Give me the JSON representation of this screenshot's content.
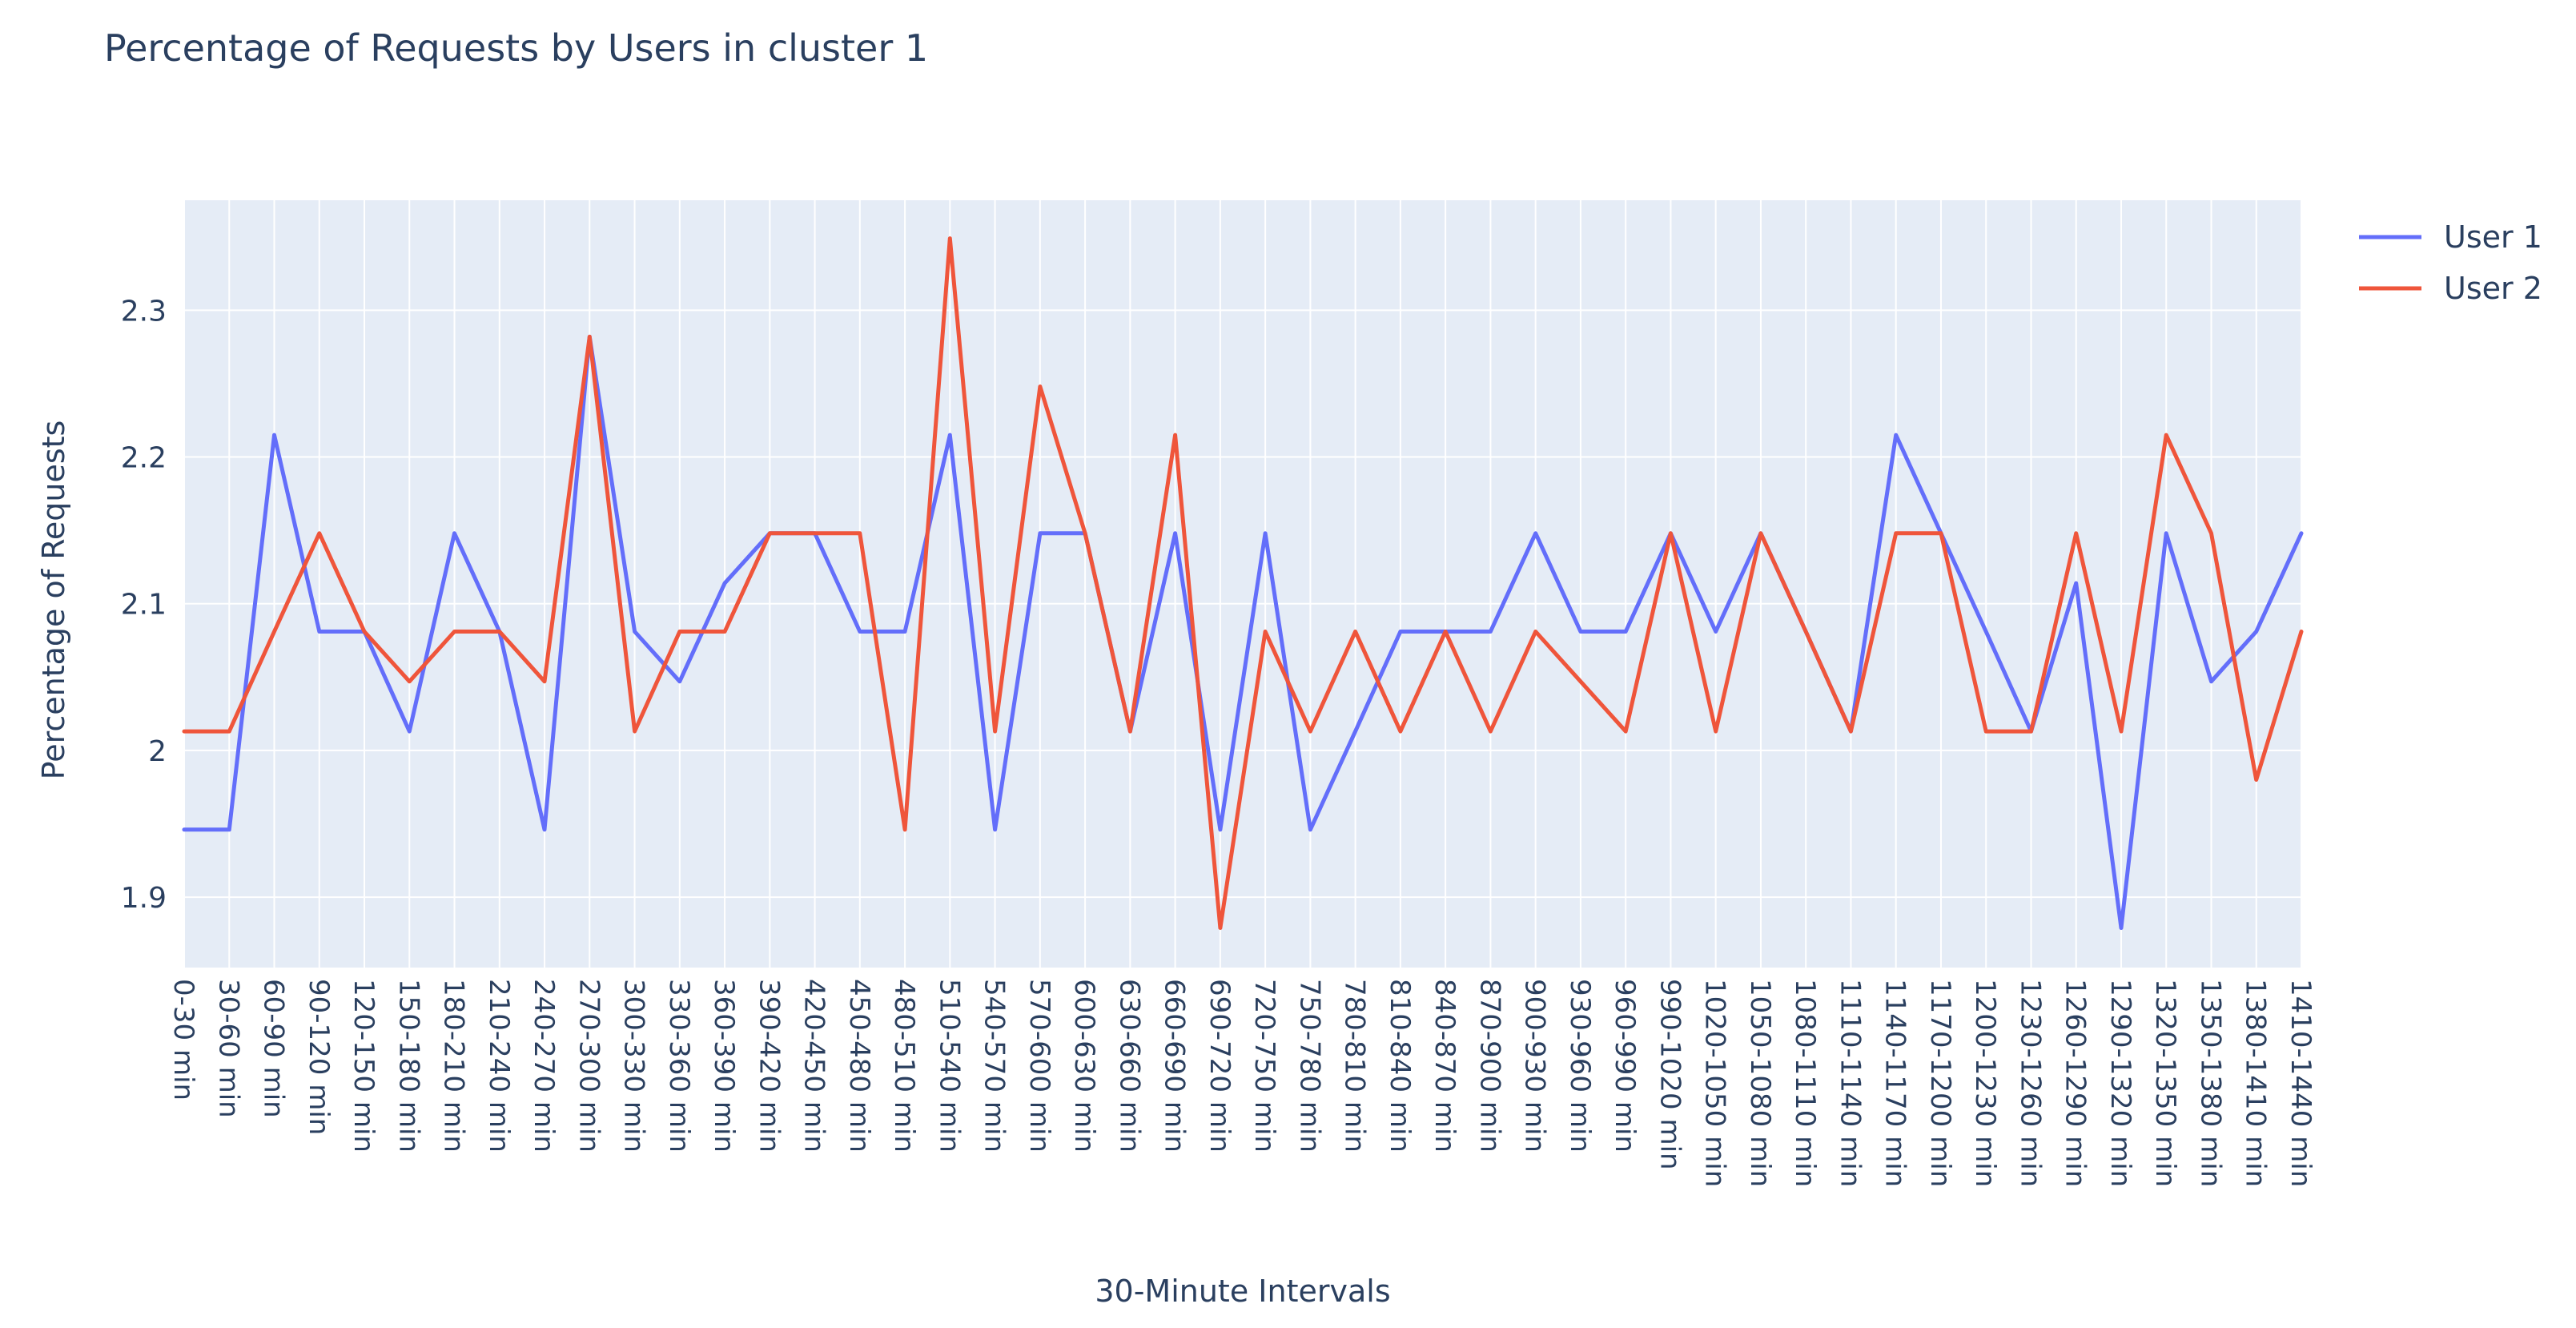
{
  "chart_data": {
    "type": "line",
    "title": "Percentage of Requests by Users in cluster 1",
    "xlabel": "30-Minute Intervals",
    "ylabel": "Percentage of Requests",
    "ylim": [
      1.852,
      2.375
    ],
    "yticks": [
      1.9,
      2,
      2.1,
      2.2,
      2.3
    ],
    "ytick_labels": [
      "1.9",
      "2",
      "2.1",
      "2.2",
      "2.3"
    ],
    "grid": true,
    "legend_position": "top-right",
    "categories": [
      "0-30 min",
      "30-60 min",
      "60-90 min",
      "90-120 min",
      "120-150 min",
      "150-180 min",
      "180-210 min",
      "210-240 min",
      "240-270 min",
      "270-300 min",
      "300-330 min",
      "330-360 min",
      "360-390 min",
      "390-420 min",
      "420-450 min",
      "450-480 min",
      "480-510 min",
      "510-540 min",
      "540-570 min",
      "570-600 min",
      "600-630 min",
      "630-660 min",
      "660-690 min",
      "690-720 min",
      "720-750 min",
      "750-780 min",
      "780-810 min",
      "810-840 min",
      "840-870 min",
      "870-900 min",
      "900-930 min",
      "930-960 min",
      "960-990 min",
      "990-1020 min",
      "1020-1050 min",
      "1050-1080 min",
      "1080-1110 min",
      "1110-1140 min",
      "1140-1170 min",
      "1170-1200 min",
      "1200-1230 min",
      "1230-1260 min",
      "1260-1290 min",
      "1290-1320 min",
      "1320-1350 min",
      "1350-1380 min",
      "1380-1410 min",
      "1410-1440 min"
    ],
    "series": [
      {
        "name": "User 1",
        "color": "#636efa",
        "values": [
          1.946,
          1.946,
          2.215,
          2.081,
          2.081,
          2.013,
          2.148,
          2.081,
          1.946,
          2.282,
          2.081,
          2.047,
          2.114,
          2.148,
          2.148,
          2.081,
          2.081,
          2.215,
          1.946,
          2.148,
          2.148,
          2.013,
          2.148,
          1.946,
          2.148,
          1.946,
          2.013,
          2.081,
          2.081,
          2.081,
          2.148,
          2.081,
          2.081,
          2.148,
          2.081,
          2.148,
          2.081,
          2.013,
          2.215,
          2.148,
          2.081,
          2.013,
          2.114,
          1.879,
          2.148,
          2.047,
          2.081,
          2.148
        ]
      },
      {
        "name": "User 2",
        "color": "#ef553b",
        "values": [
          2.013,
          2.013,
          2.081,
          2.148,
          2.081,
          2.047,
          2.081,
          2.081,
          2.047,
          2.282,
          2.013,
          2.081,
          2.081,
          2.148,
          2.148,
          2.148,
          1.946,
          2.349,
          2.013,
          2.248,
          2.148,
          2.013,
          2.215,
          1.879,
          2.081,
          2.013,
          2.081,
          2.013,
          2.081,
          2.013,
          2.081,
          2.047,
          2.013,
          2.148,
          2.013,
          2.148,
          2.081,
          2.013,
          2.148,
          2.148,
          2.013,
          2.013,
          2.148,
          2.013,
          2.215,
          2.148,
          1.98,
          2.081
        ]
      }
    ]
  }
}
